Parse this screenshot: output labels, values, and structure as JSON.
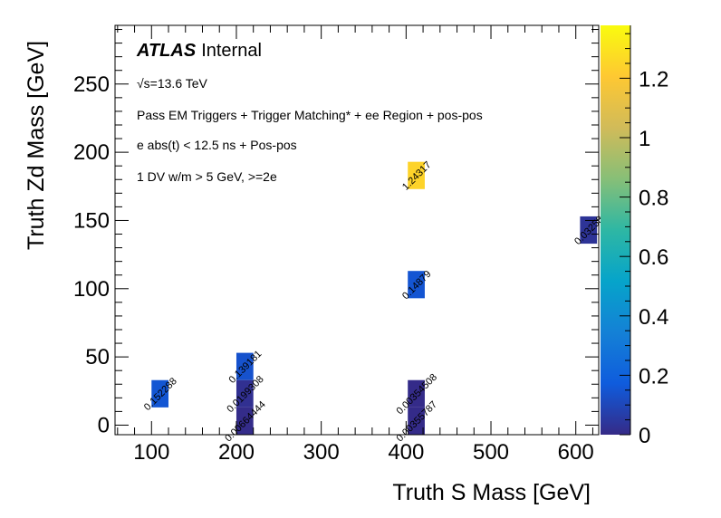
{
  "chart_data": {
    "type": "heatmap",
    "title": "",
    "xlabel": "Truth S Mass [GeV]",
    "ylabel": "Truth Zd Mass [GeV]",
    "xlim": [
      57,
      627
    ],
    "ylim": [
      -7,
      293
    ],
    "zlim": [
      0,
      1.378
    ],
    "x_ticks": [
      "100",
      "200",
      "300",
      "400",
      "500",
      "600"
    ],
    "y_ticks": [
      "0",
      "50",
      "100",
      "150",
      "200",
      "250"
    ],
    "z_ticks": [
      "0",
      "0.2",
      "0.4",
      "0.6",
      "0.8",
      "1",
      "1.2"
    ],
    "palette": "kBird",
    "grid": false,
    "cells": [
      {
        "x": [
          100,
          120
        ],
        "y": [
          13,
          33
        ],
        "value": 0.152288,
        "label": "0.152288"
      },
      {
        "x": [
          200,
          220
        ],
        "y": [
          33,
          53
        ],
        "value": 0.139181,
        "label": "0.139181"
      },
      {
        "x": [
          200,
          220
        ],
        "y": [
          13,
          33
        ],
        "value": 0.0199308,
        "label": "0.0199308"
      },
      {
        "x": [
          200,
          220
        ],
        "y": [
          -7,
          13
        ],
        "value": 0.00664444,
        "label": "0.00664444"
      },
      {
        "x": [
          402,
          422
        ],
        "y": [
          13,
          33
        ],
        "value": 0.00354508,
        "label": "0.00354508"
      },
      {
        "x": [
          402,
          422
        ],
        "y": [
          -7,
          13
        ],
        "value": 0.00355787,
        "label": "0.00355787"
      },
      {
        "x": [
          402,
          422
        ],
        "y": [
          93,
          113
        ],
        "value": 0.14879,
        "label": "0.14879"
      },
      {
        "x": [
          402,
          422
        ],
        "y": [
          173,
          193
        ],
        "value": 1.24317,
        "label": "1.24317"
      },
      {
        "x": [
          605,
          625
        ],
        "y": [
          133,
          153
        ],
        "value": 0.03258,
        "label": "0.03258"
      }
    ],
    "annotations": {
      "atlas": "ATLAS",
      "internal": "Internal",
      "energy": "√s=13.6 TeV",
      "line1": "Pass EM Triggers + Trigger Matching* + ee Region + pos-pos",
      "line2": "e abs(t) < 12.5 ns + Pos-pos",
      "line3": "1 DV w/m > 5 GeV, >=2e"
    }
  }
}
